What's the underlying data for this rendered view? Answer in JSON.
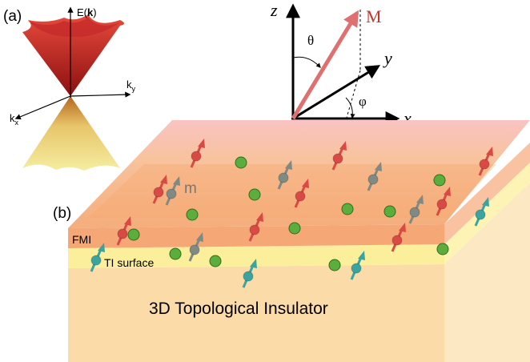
{
  "panel_a": {
    "label": "(a)",
    "energy_axis": [
      "E(",
      "k",
      ")"
    ],
    "ky_axis": {
      "base": "k",
      "sub": "y"
    },
    "kx_axis": {
      "base": "k",
      "sub": "x"
    }
  },
  "coordinates": {
    "z": "z",
    "y": "y",
    "x": "x",
    "magnetization": "M",
    "theta": "θ",
    "phi": "φ"
  },
  "panel_b": {
    "label": "(b)",
    "moment": "m",
    "fmi_layer": "FMI",
    "ti_layer": "TI surface",
    "bulk": "3D Topological Insulator"
  }
}
